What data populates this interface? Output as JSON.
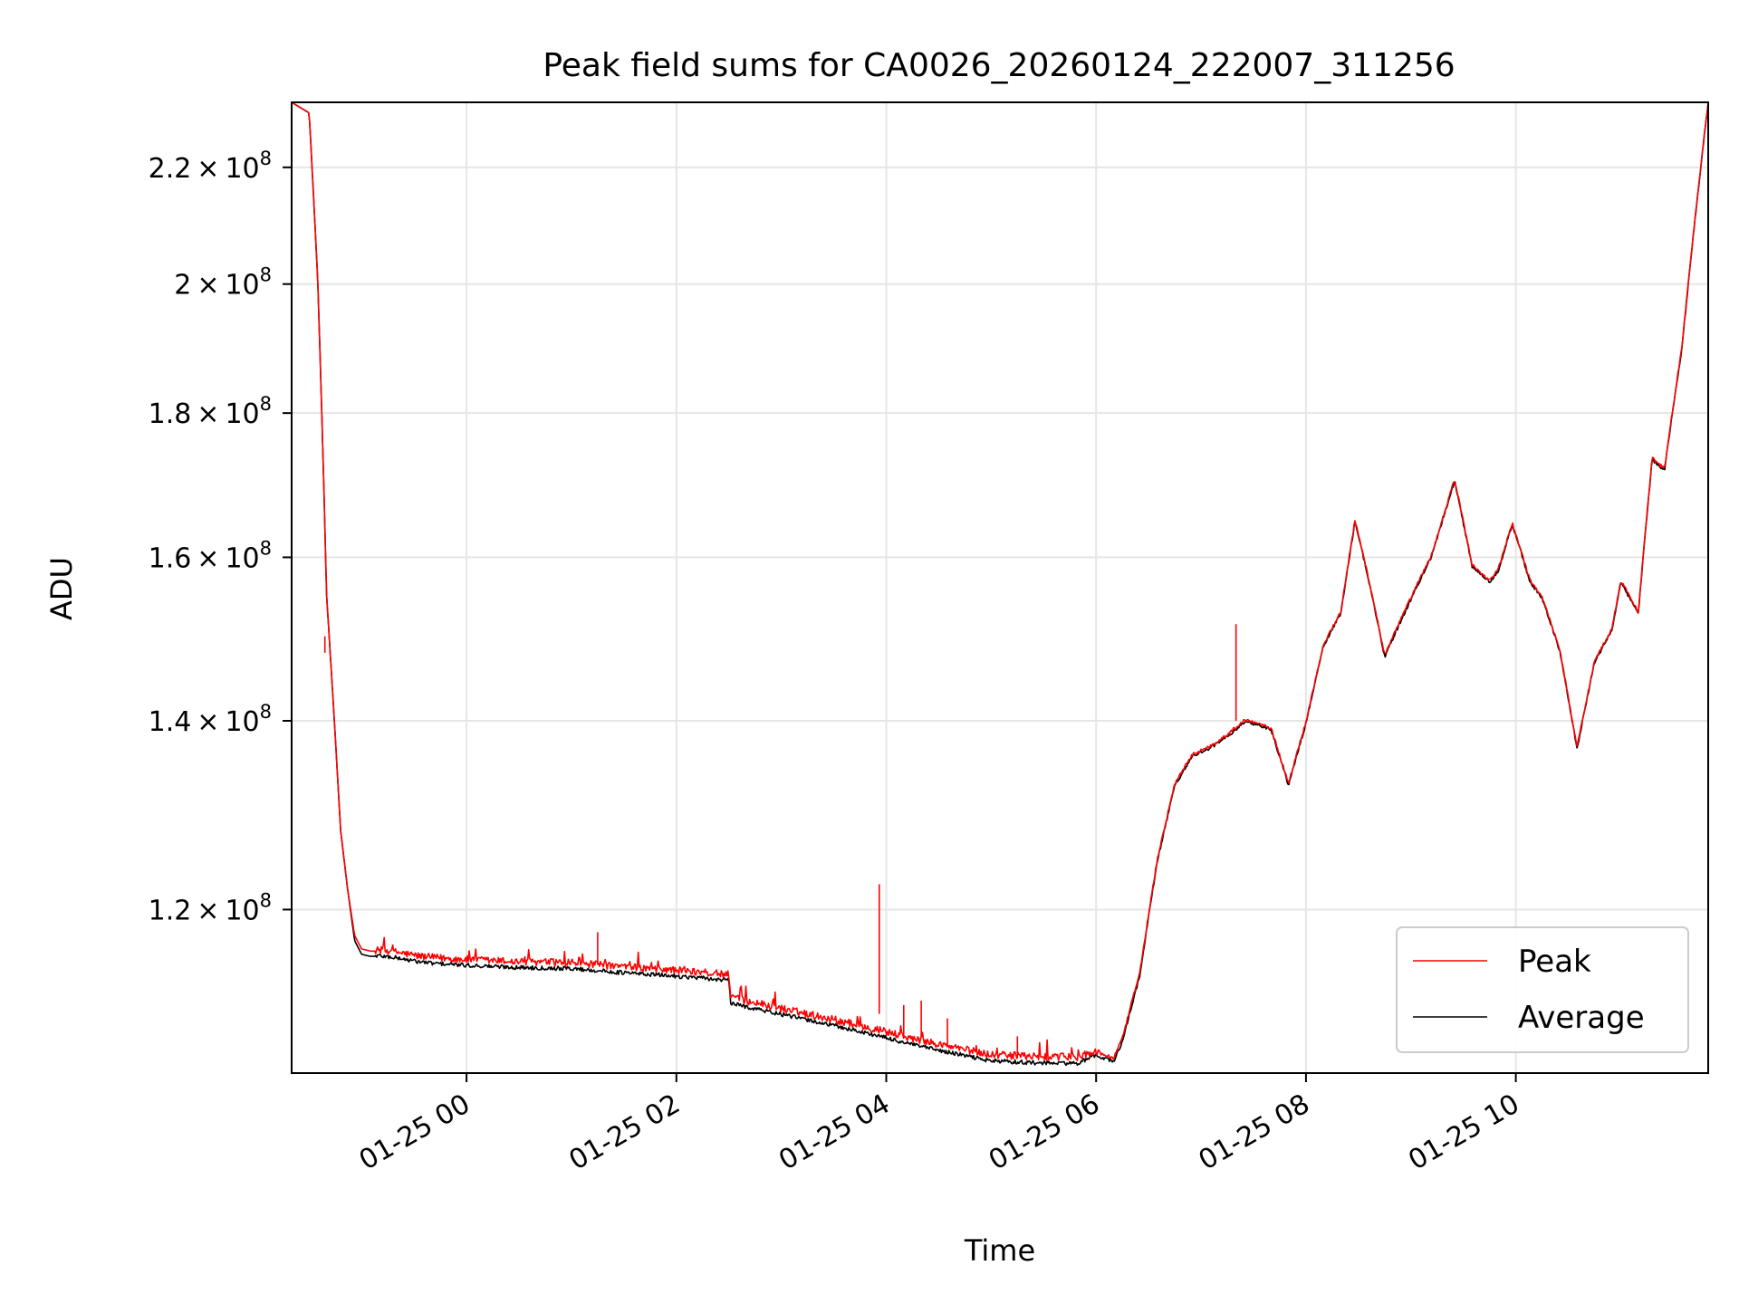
{
  "chart_data": {
    "type": "line",
    "title": "Peak field sums for CA0026_20260124_222007_311256",
    "xlabel": "Time",
    "ylabel": "ADU",
    "y_scale": "log",
    "grid": true,
    "legend_position": "lower-right",
    "x_range": [
      "2026-01-24 22:20",
      "2026-01-25 11:50"
    ],
    "ylim": [
      105000000,
      232000000
    ],
    "x_ticks": [
      {
        "value": "2026-01-25 00:00",
        "label": "01-25 00"
      },
      {
        "value": "2026-01-25 02:00",
        "label": "01-25 02"
      },
      {
        "value": "2026-01-25 04:00",
        "label": "01-25 04"
      },
      {
        "value": "2026-01-25 06:00",
        "label": "01-25 06"
      },
      {
        "value": "2026-01-25 08:00",
        "label": "01-25 08"
      },
      {
        "value": "2026-01-25 10:00",
        "label": "01-25 10"
      }
    ],
    "y_ticks": [
      {
        "value": 120000000,
        "mantissa": "1.2",
        "exp": "8"
      },
      {
        "value": 140000000,
        "mantissa": "1.4",
        "exp": "8"
      },
      {
        "value": 160000000,
        "mantissa": "1.6",
        "exp": "8"
      },
      {
        "value": 180000000,
        "mantissa": "1.8",
        "exp": "8"
      },
      {
        "value": 200000000,
        "mantissa": "2",
        "exp": "8"
      },
      {
        "value": 220000000,
        "mantissa": "2.2",
        "exp": "8"
      }
    ],
    "series": [
      {
        "name": "Peak",
        "color": "#ff0000",
        "x": [
          "2026-01-24 22:20",
          "2026-01-24 22:30",
          "2026-01-24 22:35",
          "2026-01-24 22:40",
          "2026-01-24 22:45",
          "2026-01-24 22:48",
          "2026-01-24 22:52",
          "2026-01-24 22:56",
          "2026-01-24 23:00",
          "2026-01-24 23:05",
          "2026-01-24 23:10",
          "2026-01-24 23:20",
          "2026-01-24 23:30",
          "2026-01-24 23:40",
          "2026-01-25 00:00",
          "2026-01-25 00:30",
          "2026-01-25 01:00",
          "2026-01-25 01:30",
          "2026-01-25 02:00",
          "2026-01-25 02:30",
          "2026-01-25 02:31",
          "2026-01-25 03:00",
          "2026-01-25 03:30",
          "2026-01-25 03:55",
          "2026-01-25 04:10",
          "2026-01-25 04:30",
          "2026-01-25 05:00",
          "2026-01-25 05:30",
          "2026-01-25 05:50",
          "2026-01-25 06:00",
          "2026-01-25 06:10",
          "2026-01-25 06:15",
          "2026-01-25 06:25",
          "2026-01-25 06:35",
          "2026-01-25 06:45",
          "2026-01-25 06:55",
          "2026-01-25 07:05",
          "2026-01-25 07:15",
          "2026-01-25 07:25",
          "2026-01-25 07:32",
          "2026-01-25 07:40",
          "2026-01-25 07:50",
          "2026-01-25 08:00",
          "2026-01-25 08:10",
          "2026-01-25 08:20",
          "2026-01-25 08:28",
          "2026-01-25 08:35",
          "2026-01-25 08:45",
          "2026-01-25 09:00",
          "2026-01-25 09:12",
          "2026-01-25 09:25",
          "2026-01-25 09:35",
          "2026-01-25 09:45",
          "2026-01-25 09:50",
          "2026-01-25 09:58",
          "2026-01-25 10:08",
          "2026-01-25 10:15",
          "2026-01-25 10:25",
          "2026-01-25 10:35",
          "2026-01-25 10:45",
          "2026-01-25 10:55",
          "2026-01-25 11:00",
          "2026-01-25 11:10",
          "2026-01-25 11:18",
          "2026-01-25 11:25",
          "2026-01-25 11:35",
          "2026-01-25 11:50"
        ],
        "y": [
          232000000,
          230000000,
          200000000,
          155000000,
          138000000,
          128000000,
          122000000,
          117500000,
          116200000,
          116000000,
          116000000,
          115800000,
          115500000,
          115300000,
          115100000,
          114900000,
          114800000,
          114400000,
          114100000,
          113700000,
          111600000,
          110600000,
          109600000,
          108700000,
          108100000,
          107400000,
          106500000,
          106300000,
          106300000,
          106800000,
          106300000,
          108000000,
          114000000,
          125000000,
          133000000,
          136200000,
          137100000,
          138400000,
          140100000,
          139800000,
          139200000,
          133000000,
          139900000,
          149000000,
          153100000,
          164900000,
          158100000,
          147700000,
          154800000,
          160400000,
          170500000,
          159000000,
          157000000,
          158500000,
          164500000,
          157100000,
          154900000,
          148500000,
          137000000,
          147000000,
          151000000,
          157000000,
          153000000,
          173500000,
          172000000,
          190000000,
          232000000
        ]
      },
      {
        "name": "Average",
        "color": "#000000",
        "x": [
          "2026-01-24 22:20",
          "2026-01-24 22:30",
          "2026-01-24 22:35",
          "2026-01-24 22:40",
          "2026-01-24 22:45",
          "2026-01-24 22:48",
          "2026-01-24 22:52",
          "2026-01-24 22:56",
          "2026-01-24 23:00",
          "2026-01-24 23:05",
          "2026-01-24 23:10",
          "2026-01-24 23:20",
          "2026-01-24 23:30",
          "2026-01-24 23:40",
          "2026-01-25 00:00",
          "2026-01-25 00:30",
          "2026-01-25 01:00",
          "2026-01-25 01:30",
          "2026-01-25 02:00",
          "2026-01-25 02:30",
          "2026-01-25 02:31",
          "2026-01-25 03:00",
          "2026-01-25 03:30",
          "2026-01-25 03:55",
          "2026-01-25 04:10",
          "2026-01-25 04:30",
          "2026-01-25 05:00",
          "2026-01-25 05:30",
          "2026-01-25 05:50",
          "2026-01-25 06:00",
          "2026-01-25 06:10",
          "2026-01-25 06:15",
          "2026-01-25 06:25",
          "2026-01-25 06:35",
          "2026-01-25 06:45",
          "2026-01-25 06:55",
          "2026-01-25 07:05",
          "2026-01-25 07:15",
          "2026-01-25 07:25",
          "2026-01-25 07:32",
          "2026-01-25 07:40",
          "2026-01-25 07:50",
          "2026-01-25 08:00",
          "2026-01-25 08:10",
          "2026-01-25 08:20",
          "2026-01-25 08:28",
          "2026-01-25 08:35",
          "2026-01-25 08:45",
          "2026-01-25 09:00",
          "2026-01-25 09:12",
          "2026-01-25 09:25",
          "2026-01-25 09:35",
          "2026-01-25 09:45",
          "2026-01-25 09:50",
          "2026-01-25 09:58",
          "2026-01-25 10:08",
          "2026-01-25 10:15",
          "2026-01-25 10:25",
          "2026-01-25 10:35",
          "2026-01-25 10:45",
          "2026-01-25 10:55",
          "2026-01-25 11:00",
          "2026-01-25 11:10",
          "2026-01-25 11:18",
          "2026-01-25 11:25",
          "2026-01-25 11:35",
          "2026-01-25 11:50"
        ],
        "y": [
          232000000,
          230000000,
          200000000,
          155000000,
          138000000,
          128000000,
          122000000,
          117000000,
          115700000,
          115500000,
          115500000,
          115300000,
          115000000,
          114800000,
          114600000,
          114400000,
          114300000,
          113900000,
          113600000,
          113200000,
          111100000,
          110100000,
          109100000,
          108200000,
          107600000,
          106900000,
          106000000,
          105800000,
          105800000,
          106500000,
          106000000,
          107700000,
          113700000,
          124800000,
          132800000,
          136000000,
          136900000,
          138200000,
          139900000,
          139600000,
          139000000,
          132800000,
          139700000,
          148800000,
          152900000,
          164700000,
          157900000,
          147500000,
          154600000,
          160200000,
          170300000,
          158800000,
          156800000,
          158300000,
          164300000,
          156900000,
          154700000,
          148300000,
          136800000,
          146800000,
          150800000,
          156800000,
          152800000,
          173300000,
          171800000,
          189800000,
          232000000
        ]
      }
    ],
    "spikes": [
      {
        "x": "2026-01-24 22:39",
        "peak": 150000000,
        "average": 148000000
      },
      {
        "x": "2026-01-25 01:15",
        "peak": 117800000,
        "average": 114700000
      },
      {
        "x": "2026-01-25 03:56",
        "peak": 122500000,
        "average": 110200000
      },
      {
        "x": "2026-01-25 04:10",
        "peak": 111000000,
        "average": 108200000
      },
      {
        "x": "2026-01-25 04:20",
        "peak": 111400000,
        "average": 108100000
      },
      {
        "x": "2026-01-25 04:35",
        "peak": 109800000,
        "average": 107300000
      },
      {
        "x": "2026-01-25 05:15",
        "peak": 108200000,
        "average": 106300000
      },
      {
        "x": "2026-01-25 07:20",
        "peak": 151500000,
        "average": 140000000
      }
    ]
  }
}
